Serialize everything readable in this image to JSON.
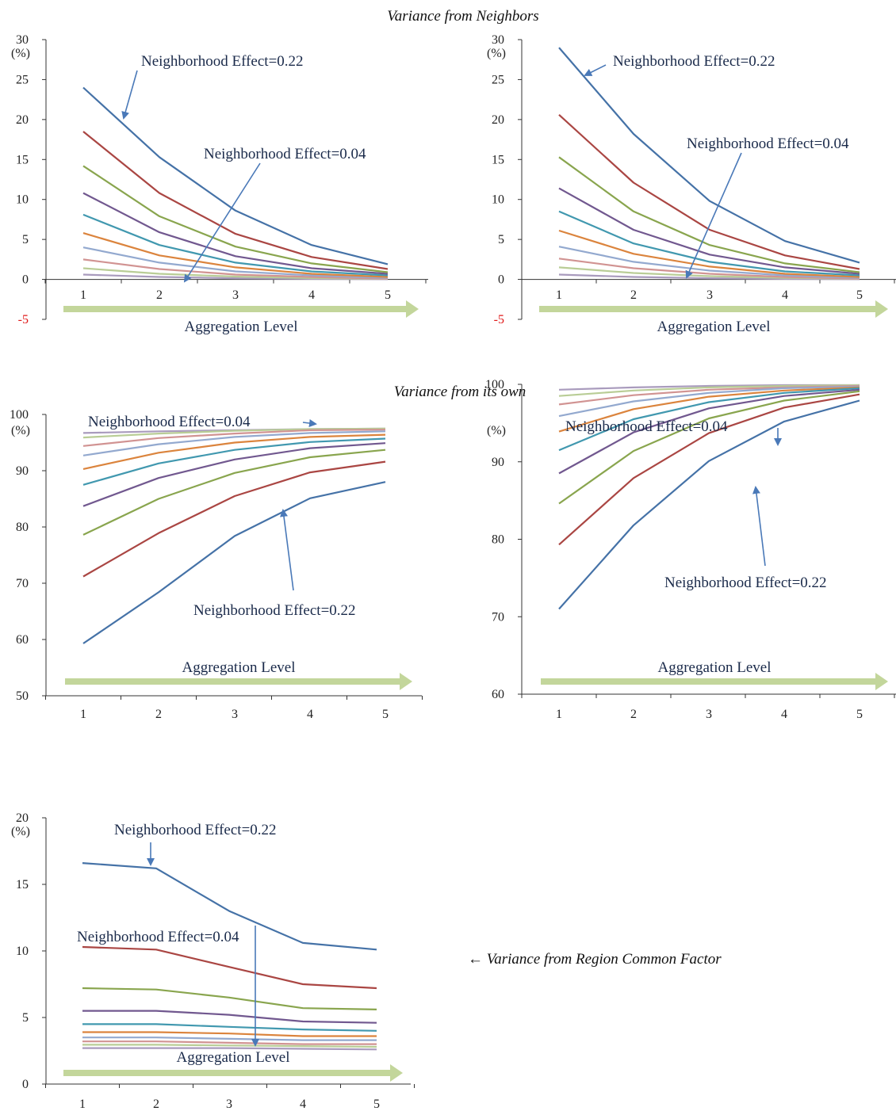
{
  "section_titles": {
    "neighbors": "Variance from Neighbors",
    "own": "Variance from its own",
    "region": "← Variance from Region Common Factor"
  },
  "colors": [
    "#4572a7",
    "#aa4643",
    "#89a54e",
    "#71588f",
    "#4198af",
    "#db843d",
    "#93a9cf",
    "#d19392",
    "#b9cd96",
    "#a99bbd"
  ],
  "chart_data": [
    {
      "id": "neighbors-left",
      "type": "line",
      "x": [
        1,
        2,
        3,
        4,
        5
      ],
      "xlabel": "Aggregation Level",
      "ylim": [
        -5,
        30
      ],
      "yticks": [
        -5,
        0,
        5,
        10,
        15,
        20,
        25,
        30
      ],
      "yunit": "(%)",
      "annotations": [
        "Neighborhood Effect=0.22",
        "Neighborhood Effect=0.04"
      ],
      "series": [
        {
          "values": [
            24,
            15.3,
            8.6,
            4.3,
            1.9
          ]
        },
        {
          "values": [
            18.5,
            10.8,
            5.7,
            2.8,
            1.3
          ]
        },
        {
          "values": [
            14.2,
            7.9,
            4.1,
            2.0,
            0.9
          ]
        },
        {
          "values": [
            10.8,
            5.9,
            2.9,
            1.4,
            0.7
          ]
        },
        {
          "values": [
            8.1,
            4.3,
            2.1,
            1.0,
            0.5
          ]
        },
        {
          "values": [
            5.8,
            3.0,
            1.5,
            0.7,
            0.3
          ]
        },
        {
          "values": [
            4.0,
            2.1,
            1.0,
            0.5,
            0.2
          ]
        },
        {
          "values": [
            2.5,
            1.3,
            0.6,
            0.3,
            0.1
          ]
        },
        {
          "values": [
            1.4,
            0.7,
            0.35,
            0.17,
            0.08
          ]
        },
        {
          "values": [
            0.6,
            0.3,
            0.15,
            0.07,
            0.03
          ]
        }
      ]
    },
    {
      "id": "neighbors-right",
      "type": "line",
      "x": [
        1,
        2,
        3,
        4,
        5
      ],
      "xlabel": "Aggregation Level",
      "ylim": [
        -5,
        30
      ],
      "yticks": [
        -5,
        0,
        5,
        10,
        15,
        20,
        25,
        30
      ],
      "yunit": "(%)",
      "annotations": [
        "Neighborhood Effect=0.22",
        "Neighborhood Effect=0.04"
      ],
      "series": [
        {
          "values": [
            29,
            18.2,
            9.8,
            4.8,
            2.1
          ]
        },
        {
          "values": [
            20.6,
            12.1,
            6.2,
            3.0,
            1.3
          ]
        },
        {
          "values": [
            15.3,
            8.5,
            4.3,
            2.0,
            0.9
          ]
        },
        {
          "values": [
            11.4,
            6.2,
            3.1,
            1.5,
            0.7
          ]
        },
        {
          "values": [
            8.5,
            4.5,
            2.2,
            1.0,
            0.5
          ]
        },
        {
          "values": [
            6.1,
            3.2,
            1.6,
            0.7,
            0.3
          ]
        },
        {
          "values": [
            4.1,
            2.2,
            1.1,
            0.5,
            0.2
          ]
        },
        {
          "values": [
            2.6,
            1.4,
            0.7,
            0.3,
            0.1
          ]
        },
        {
          "values": [
            1.5,
            0.8,
            0.4,
            0.2,
            0.08
          ]
        },
        {
          "values": [
            0.6,
            0.3,
            0.15,
            0.07,
            0.03
          ]
        }
      ]
    },
    {
      "id": "own-left",
      "type": "line",
      "x": [
        1,
        2,
        3,
        4,
        5
      ],
      "xlabel": "Aggregation Level",
      "ylim": [
        50,
        100
      ],
      "yticks": [
        50,
        60,
        70,
        80,
        90,
        100
      ],
      "yunit": "(%)",
      "annotations": [
        "Neighborhood Effect=0.04",
        "Neighborhood Effect=0.22"
      ],
      "series": [
        {
          "values": [
            59.3,
            68.4,
            78.4,
            85.1,
            88.0
          ]
        },
        {
          "values": [
            71.2,
            78.9,
            85.5,
            89.7,
            91.6
          ]
        },
        {
          "values": [
            78.6,
            85.0,
            89.6,
            92.4,
            93.7
          ]
        },
        {
          "values": [
            83.7,
            88.7,
            92.0,
            94.0,
            94.9
          ]
        },
        {
          "values": [
            87.5,
            91.3,
            93.7,
            95.1,
            95.7
          ]
        },
        {
          "values": [
            90.3,
            93.2,
            95.0,
            96.0,
            96.4
          ]
        },
        {
          "values": [
            92.7,
            94.7,
            96.0,
            96.7,
            97.0
          ]
        },
        {
          "values": [
            94.4,
            95.8,
            96.6,
            97.2,
            97.3
          ]
        },
        {
          "values": [
            95.9,
            96.6,
            97.1,
            97.4,
            97.5
          ]
        },
        {
          "values": [
            96.7,
            97.0,
            97.2,
            97.4,
            97.5
          ]
        }
      ]
    },
    {
      "id": "own-right",
      "type": "line",
      "x": [
        1,
        2,
        3,
        4,
        5
      ],
      "xlabel": "Aggregation Level",
      "ylim": [
        60,
        100
      ],
      "yticks": [
        60,
        70,
        80,
        90,
        100
      ],
      "yunit": "(%)",
      "annotations": [
        "Neighborhood Effect=0.04",
        "Neighborhood Effect=0.22"
      ],
      "series": [
        {
          "values": [
            71.0,
            81.8,
            90.1,
            95.2,
            97.9
          ]
        },
        {
          "values": [
            79.3,
            87.9,
            93.7,
            97.0,
            98.7
          ]
        },
        {
          "values": [
            84.6,
            91.4,
            95.6,
            97.9,
            99.1
          ]
        },
        {
          "values": [
            88.5,
            93.8,
            96.9,
            98.5,
            99.3
          ]
        },
        {
          "values": [
            91.5,
            95.5,
            97.7,
            98.9,
            99.5
          ]
        },
        {
          "values": [
            93.9,
            96.8,
            98.4,
            99.2,
            99.6
          ]
        },
        {
          "values": [
            95.9,
            97.8,
            98.9,
            99.5,
            99.7
          ]
        },
        {
          "values": [
            97.4,
            98.6,
            99.3,
            99.6,
            99.8
          ]
        },
        {
          "values": [
            98.5,
            99.2,
            99.6,
            99.8,
            99.9
          ]
        },
        {
          "values": [
            99.3,
            99.6,
            99.8,
            99.9,
            99.9
          ]
        }
      ]
    },
    {
      "id": "region",
      "type": "line",
      "x": [
        1,
        2,
        3,
        4,
        5
      ],
      "xlabel": "Aggregation Level",
      "ylim": [
        0,
        20
      ],
      "yticks": [
        0,
        5,
        10,
        15,
        20
      ],
      "yunit": "(%)",
      "annotations": [
        "Neighborhood Effect=0.22",
        "Neighborhood Effect=0.04"
      ],
      "series": [
        {
          "values": [
            16.6,
            16.2,
            13.0,
            10.6,
            10.1
          ]
        },
        {
          "values": [
            10.3,
            10.1,
            8.8,
            7.5,
            7.2
          ]
        },
        {
          "values": [
            7.2,
            7.1,
            6.5,
            5.7,
            5.6
          ]
        },
        {
          "values": [
            5.5,
            5.5,
            5.2,
            4.7,
            4.6
          ]
        },
        {
          "values": [
            4.5,
            4.5,
            4.3,
            4.1,
            4.0
          ]
        },
        {
          "values": [
            3.9,
            3.9,
            3.8,
            3.6,
            3.6
          ]
        },
        {
          "values": [
            3.5,
            3.5,
            3.4,
            3.3,
            3.3
          ]
        },
        {
          "values": [
            3.2,
            3.2,
            3.1,
            3.0,
            3.0
          ]
        },
        {
          "values": [
            2.95,
            2.95,
            2.9,
            2.85,
            2.8
          ]
        },
        {
          "values": [
            2.7,
            2.7,
            2.7,
            2.65,
            2.6
          ]
        }
      ]
    }
  ]
}
